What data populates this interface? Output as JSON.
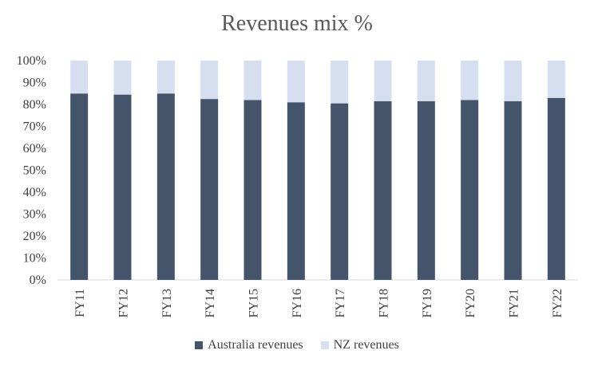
{
  "chart_data": {
    "type": "bar",
    "stacked": true,
    "title": "Revenues mix %",
    "xlabel": "",
    "ylabel": "",
    "ylim": [
      0,
      100
    ],
    "yticks": [
      "0%",
      "10%",
      "20%",
      "30%",
      "40%",
      "50%",
      "60%",
      "70%",
      "80%",
      "90%",
      "100%"
    ],
    "categories": [
      "FY11",
      "FY12",
      "FY13",
      "FY14",
      "FY15",
      "FY16",
      "FY17",
      "FY18",
      "FY19",
      "FY20",
      "FY21",
      "FY22"
    ],
    "series": [
      {
        "name": "Australia revenues",
        "color": "#44546a",
        "values": [
          85,
          84.5,
          85,
          82.5,
          82,
          81,
          80.5,
          81.5,
          81.5,
          82,
          81.5,
          83
        ]
      },
      {
        "name": "NZ revenues",
        "color": "#d6dff0",
        "values": [
          15,
          15.5,
          15,
          17.5,
          18,
          19,
          19.5,
          18.5,
          18.5,
          18,
          18.5,
          17
        ]
      }
    ],
    "grid": false,
    "legend_position": "bottom"
  }
}
